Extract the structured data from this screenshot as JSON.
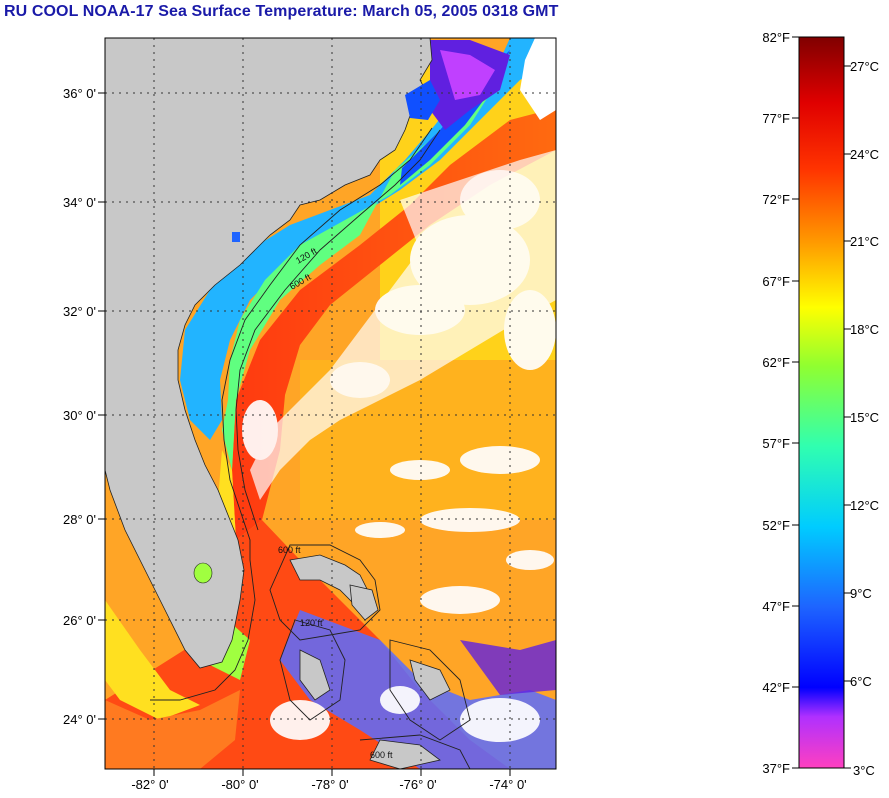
{
  "title": "RU COOL  NOAA-17  Sea Surface Temperature:  March 05, 2005 0318 GMT",
  "map": {
    "lat_labels": [
      "36° 0'",
      "34° 0'",
      "32° 0'",
      "30° 0'",
      "28° 0'",
      "26° 0'",
      "24° 0'"
    ],
    "lon_labels": [
      "-82° 0'",
      "-80° 0'",
      "-78° 0'",
      "-76° 0'",
      "-74° 0'"
    ],
    "isobath_labels": [
      "120 ft",
      "600 ft",
      "600 ft",
      "120 ft",
      "600 ft"
    ]
  },
  "colorbar": {
    "f_labels": [
      "82°F",
      "77°F",
      "72°F",
      "67°F",
      "62°F",
      "57°F",
      "52°F",
      "47°F",
      "42°F",
      "37°F"
    ],
    "c_labels": [
      "27°C",
      "24°C",
      "21°C",
      "18°C",
      "15°C",
      "12°C",
      "9°C",
      "6°C",
      "3°C"
    ]
  },
  "colors": {
    "title": "#1a1aa8",
    "land": "#c8c8c8",
    "grid": "#333333"
  }
}
